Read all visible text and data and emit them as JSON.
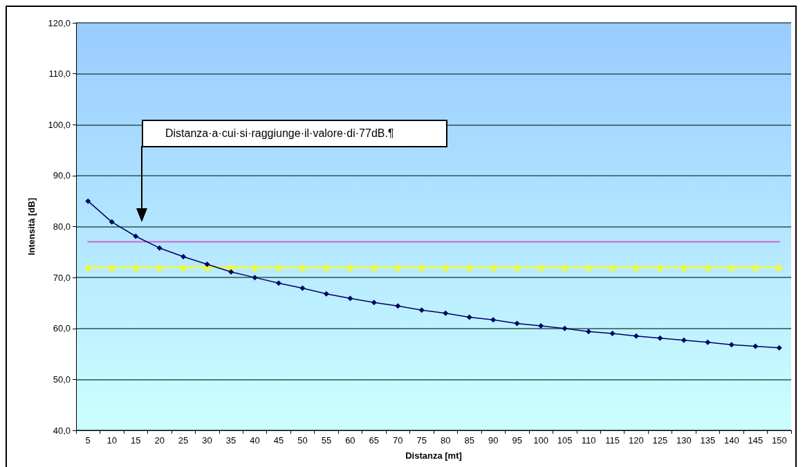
{
  "chart_data": {
    "type": "line",
    "xlabel": "Distanza [mt]",
    "ylabel": "Intensità [dB]",
    "categories": [
      "5",
      "10",
      "15",
      "20",
      "25",
      "30",
      "35",
      "40",
      "45",
      "50",
      "55",
      "60",
      "65",
      "70",
      "75",
      "80",
      "85",
      "90",
      "95",
      "100",
      "105",
      "110",
      "115",
      "120",
      "125",
      "130",
      "135",
      "140",
      "145",
      "150"
    ],
    "series": [
      {
        "color": "#000066",
        "marker": "diamond",
        "values": [
          85.0,
          80.9,
          78.1,
          75.8,
          74.1,
          72.6,
          71.1,
          70.0,
          68.9,
          67.9,
          66.8,
          65.9,
          65.1,
          64.4,
          63.6,
          63.0,
          62.2,
          61.7,
          61.0,
          60.5,
          60.0,
          59.4,
          59.0,
          58.5,
          58.1,
          57.7,
          57.3,
          56.8,
          56.5,
          56.2
        ]
      },
      {
        "color": "#cc66cc",
        "marker": "none",
        "values": [
          77,
          77,
          77,
          77,
          77,
          77,
          77,
          77,
          77,
          77,
          77,
          77,
          77,
          77,
          77,
          77,
          77,
          77,
          77,
          77,
          77,
          77,
          77,
          77,
          77,
          77,
          77,
          77,
          77,
          77
        ]
      },
      {
        "color": "#ffff00",
        "marker": "triangle",
        "values": [
          72,
          72,
          72,
          72,
          72,
          72,
          72,
          72,
          72,
          72,
          72,
          72,
          72,
          72,
          72,
          72,
          72,
          72,
          72,
          72,
          72,
          72,
          72,
          72,
          72,
          72,
          72,
          72,
          72,
          72
        ]
      }
    ],
    "ylim": [
      40,
      120
    ],
    "yticks": [
      {
        "value": 40,
        "label": "40,0"
      },
      {
        "value": 50,
        "label": "50,0"
      },
      {
        "value": 60,
        "label": "60,0"
      },
      {
        "value": 70,
        "label": "70,0"
      },
      {
        "value": 80,
        "label": "80,0"
      },
      {
        "value": 90,
        "label": "90,0"
      },
      {
        "value": 100,
        "label": "100,0"
      },
      {
        "value": 110,
        "label": "110,0"
      },
      {
        "value": 120,
        "label": "120,0"
      }
    ],
    "annotations": [
      "Distanza·a·cui·si·raggiunge·il·valore·di·77dB.¶"
    ],
    "grid": "y",
    "line_style": "solid"
  }
}
